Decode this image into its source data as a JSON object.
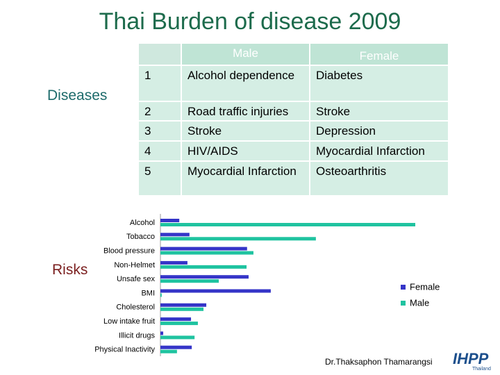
{
  "title": "Thai Burden of disease 2009",
  "table": {
    "side_label": "Diseases",
    "header": {
      "male": "Male",
      "female": "Female"
    },
    "rows": [
      [
        "1",
        "Alcohol dependence",
        "Diabetes"
      ],
      [
        "2",
        "Road traffic injuries",
        "Stroke"
      ],
      [
        "3",
        "Stroke",
        "Depression"
      ],
      [
        "4",
        "HIV/AIDS",
        "Myocardial Infarction"
      ],
      [
        "5",
        "Myocardial Infarction",
        "Osteoarthritis"
      ]
    ]
  },
  "chart_data": {
    "type": "bar",
    "orientation": "horizontal",
    "side_label": "Risks",
    "categories": [
      "Alcohol",
      "Tobacco",
      "Blood pressure",
      "Non-Helmet",
      "Unsafe sex",
      "BMI",
      "Cholesterol",
      "Low intake fruit",
      "Illicit drugs",
      "Physical Inactivity"
    ],
    "series": [
      {
        "name": "Female",
        "color": "#3535c8",
        "values": [
          7.4,
          11.4,
          34,
          10.6,
          34.6,
          43.3,
          18,
          12,
          1.1,
          12.3
        ]
      },
      {
        "name": "Male",
        "color": "#1fc3a0",
        "values": [
          100,
          61,
          36.5,
          33.8,
          22.9,
          0.5,
          16.9,
          14.7,
          13.4,
          6.5
        ]
      }
    ],
    "legend": "right"
  },
  "footer": {
    "author": "Dr.Thaksaphon Thamarangsi",
    "logo": "IHPP",
    "logo_sub": "Thailand"
  }
}
